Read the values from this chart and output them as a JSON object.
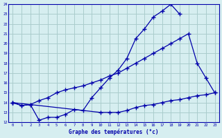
{
  "xlabel": "Graphe des températures (°c)",
  "background_color": "#d6eef0",
  "grid_color": "#aacccc",
  "line_color": "#0000aa",
  "x": [
    0,
    1,
    2,
    3,
    4,
    5,
    6,
    7,
    8,
    9,
    10,
    11,
    12,
    13,
    14,
    15,
    16,
    17,
    18,
    19,
    20,
    21,
    22,
    23
  ],
  "line1": [
    14.0,
    13.7,
    13.8,
    12.2,
    12.5,
    12.5,
    12.8,
    13.3,
    13.2,
    14.5,
    15.5,
    16.5,
    17.3,
    18.5,
    20.5,
    21.5,
    22.7,
    23.3,
    24.0,
    23.0,
    null,
    null,
    null,
    null
  ],
  "line2": [
    14.0,
    13.7,
    13.8,
    14.2,
    14.5,
    15.0,
    15.3,
    15.5,
    15.7,
    16.0,
    16.3,
    16.7,
    17.0,
    17.5,
    18.0,
    18.5,
    19.0,
    19.5,
    20.0,
    20.5,
    21.0,
    18.0,
    16.5,
    15.0
  ],
  "line3": [
    14.0,
    null,
    null,
    null,
    null,
    null,
    null,
    null,
    null,
    null,
    13.0,
    13.0,
    13.0,
    13.2,
    13.5,
    13.7,
    13.8,
    14.0,
    14.2,
    14.3,
    14.5,
    14.7,
    14.8,
    15.0
  ],
  "ylim": [
    12,
    24
  ],
  "xlim": [
    -0.5,
    23.5
  ],
  "yticks": [
    12,
    13,
    14,
    15,
    16,
    17,
    18,
    19,
    20,
    21,
    22,
    23,
    24
  ],
  "xticks": [
    0,
    1,
    2,
    3,
    4,
    5,
    6,
    7,
    8,
    9,
    10,
    11,
    12,
    13,
    14,
    15,
    16,
    17,
    18,
    19,
    20,
    21,
    22,
    23
  ]
}
